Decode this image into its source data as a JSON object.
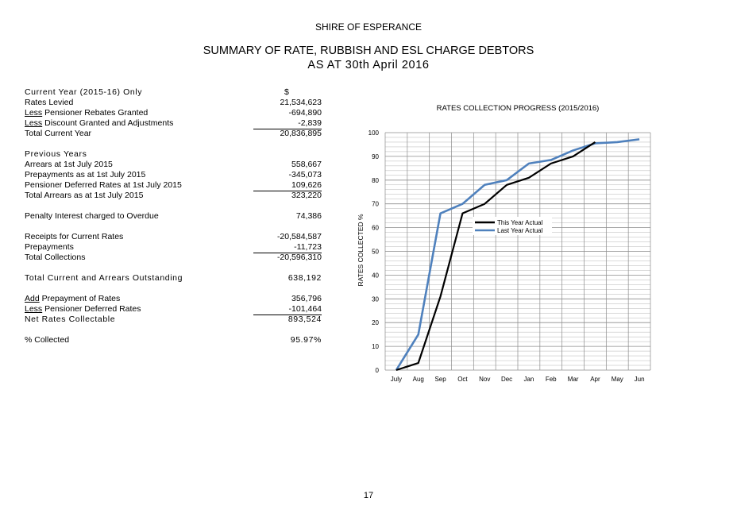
{
  "header": {
    "organisation": "SHIRE OF ESPERANCE",
    "title_line1": "SUMMARY OF RATE, RUBBISH AND ESL CHARGE DEBTORS",
    "title_line2": "AS AT 30th April 2016"
  },
  "summary": {
    "current_year_heading": "Current Year (2015-16) Only",
    "currency_symbol": "$",
    "rates_levied": {
      "label": "Rates Levied",
      "value": "21,534,623"
    },
    "pensioner_rebates": {
      "prefix": "Less",
      "label": " Pensioner Rebates Granted",
      "value": "-694,890"
    },
    "discount": {
      "prefix": "Less",
      "label": " Discount Granted and Adjustments",
      "value": "-2,839"
    },
    "total_current": {
      "label": "Total Current Year",
      "value": "20,836,895"
    },
    "previous_years_heading": "Previous Years",
    "arrears": {
      "label": "Arrears at 1st July 2015",
      "value": "558,667"
    },
    "prepayments_july": {
      "label": "Prepayments as at 1st July 2015",
      "value": "-345,073"
    },
    "pensioner_deferred_july": {
      "label": "Pensioner Deferred Rates at 1st July 2015",
      "value": "109,626"
    },
    "total_arrears": {
      "label": "Total Arrears as at 1st July 2015",
      "value": "323,220"
    },
    "penalty_interest": {
      "label": "Penalty Interest charged to Overdue",
      "value": "74,386"
    },
    "receipts": {
      "label": "Receipts for Current Rates",
      "value": "-20,584,587"
    },
    "prepayments": {
      "label": "Prepayments",
      "value": "-11,723"
    },
    "total_collections": {
      "label": "Total Collections",
      "value": "-20,596,310"
    },
    "total_outstanding": {
      "label": "Total Current and Arrears Outstanding",
      "value": "638,192"
    },
    "add_prepayment": {
      "prefix": "Add",
      "label": " Prepayment of Rates",
      "value": "356,796"
    },
    "less_deferred": {
      "prefix": "Less",
      "label": " Pensioner Deferred Rates",
      "value": "-101,464"
    },
    "net_collectable": {
      "label": "Net Rates Collectable",
      "value": "893,524"
    },
    "percent_collected": {
      "label": "% Collected",
      "value": "95.97%"
    }
  },
  "chart_data": {
    "type": "line",
    "title": "RATES COLLECTION PROGRESS (2015/2016)",
    "xlabel": "",
    "ylabel": "RATES COLLECTED %",
    "categories": [
      "July",
      "Aug",
      "Sep",
      "Oct",
      "Nov",
      "Dec",
      "Jan",
      "Feb",
      "Mar",
      "Apr",
      "May",
      "Jun"
    ],
    "ylim": [
      0,
      100
    ],
    "yticks": [
      0,
      10,
      20,
      30,
      40,
      50,
      60,
      70,
      80,
      90,
      100
    ],
    "grid": true,
    "legend_position": "center-right",
    "series": [
      {
        "name": "This Year Actual",
        "color": "#000000",
        "values": [
          0,
          3,
          31,
          66,
          70,
          78,
          81,
          87,
          90,
          96,
          null,
          null
        ]
      },
      {
        "name": "Last Year Actual",
        "color": "#4f81bd",
        "values": [
          0,
          15,
          66,
          70,
          78,
          80,
          87,
          88.5,
          92.5,
          95.5,
          96,
          97.2
        ]
      }
    ]
  },
  "footer": {
    "page_number": "17"
  }
}
